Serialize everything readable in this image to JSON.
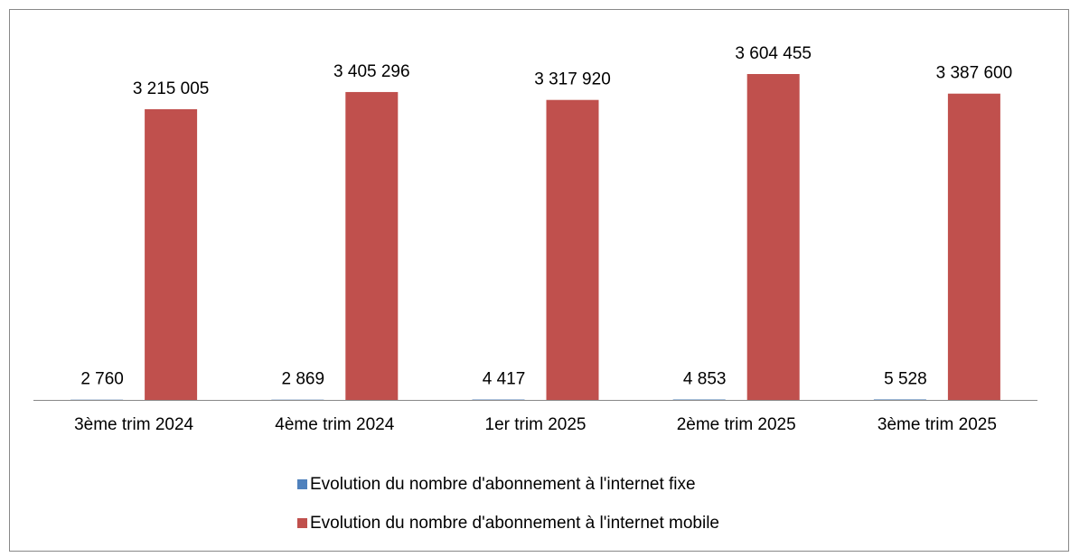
{
  "chart_data": {
    "type": "bar",
    "categories": [
      "3ème trim 2024",
      "4ème trim 2024",
      "1er trim 2025",
      "2ème trim 2025",
      "3ème trim 2025"
    ],
    "series": [
      {
        "name": "Evolution du nombre d'abonnement à l'internet fixe",
        "color": "#4f81bd",
        "values": [
          2760,
          2869,
          4417,
          4853,
          5528
        ],
        "value_labels": [
          "2 760",
          "2 869",
          "4 417",
          "4 853",
          "5 528"
        ]
      },
      {
        "name": "Evolution du nombre d'abonnement à l'internet mobile",
        "color": "#c0504d",
        "values": [
          3215005,
          3405296,
          3317920,
          3604455,
          3387600
        ],
        "value_labels": [
          "3 215 005",
          "3 405 296",
          "3 317 920",
          "3 604 455",
          "3 387 600"
        ]
      }
    ]
  }
}
